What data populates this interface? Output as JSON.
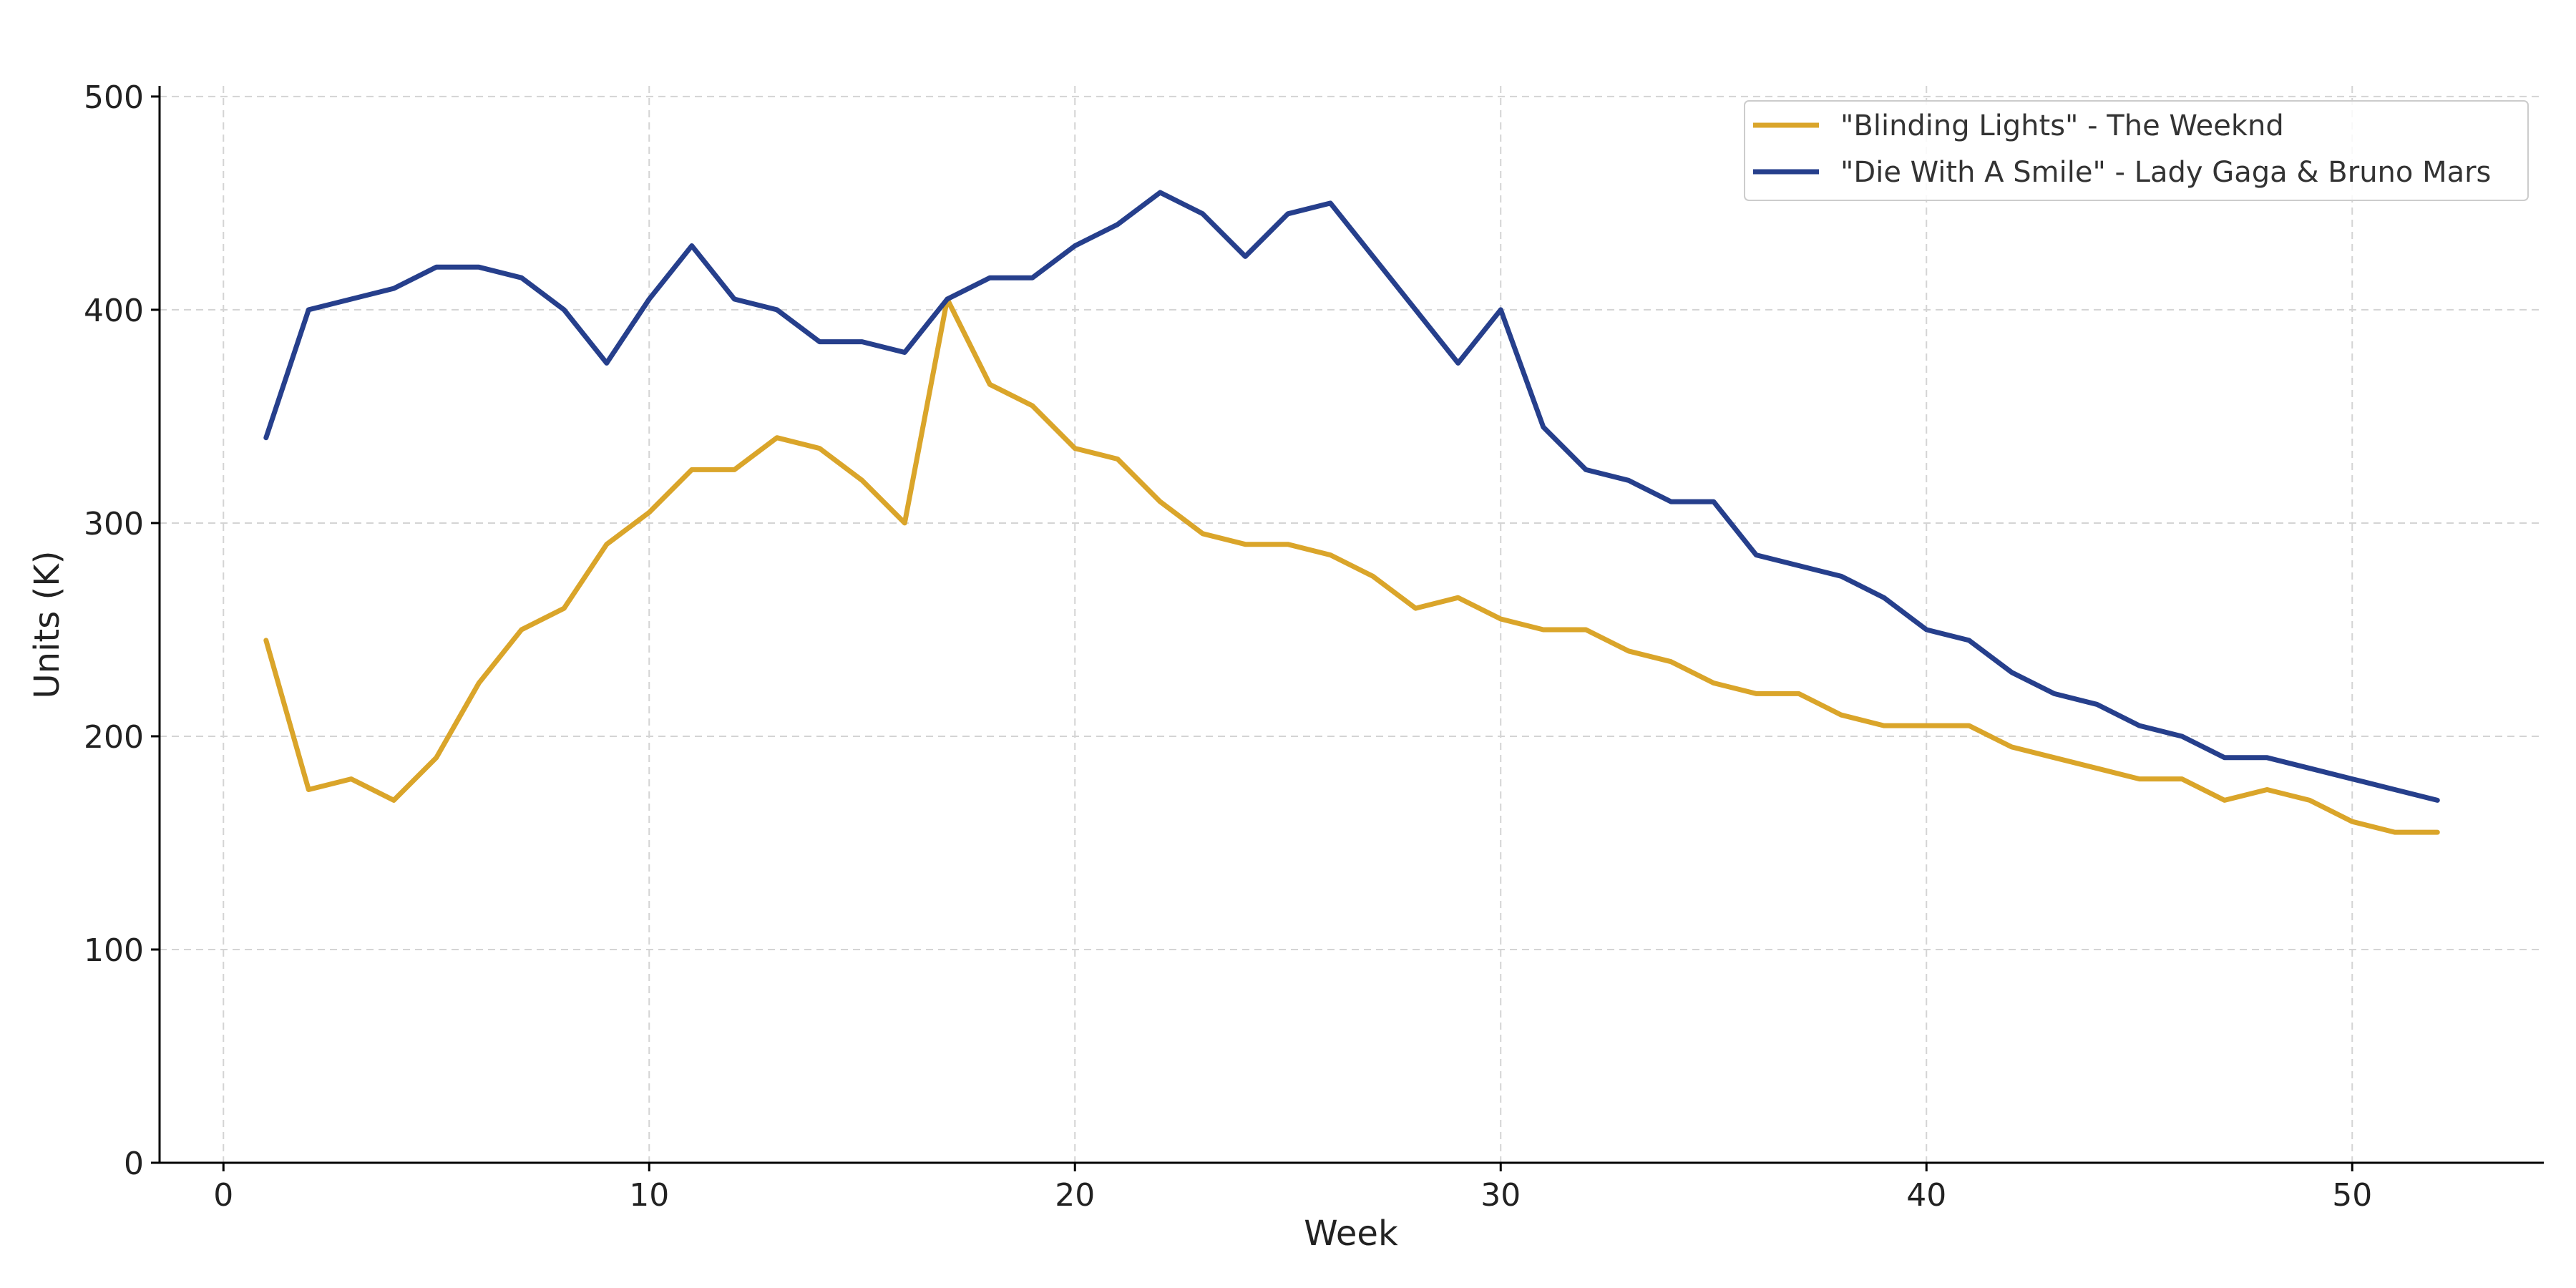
{
  "chart_data": {
    "type": "line",
    "title": "",
    "xlabel": "Week",
    "ylabel": "Units (K)",
    "xlim": [
      -1.5,
      54.5
    ],
    "ylim": [
      0,
      505
    ],
    "xticks": [
      0,
      10,
      20,
      30,
      40,
      50
    ],
    "yticks": [
      0,
      100,
      200,
      300,
      400,
      500
    ],
    "grid": true,
    "legend_position": "top-right",
    "x": [
      1,
      2,
      3,
      4,
      5,
      6,
      7,
      8,
      9,
      10,
      11,
      12,
      13,
      14,
      15,
      16,
      17,
      18,
      19,
      20,
      21,
      22,
      23,
      24,
      25,
      26,
      27,
      28,
      29,
      30,
      31,
      32,
      33,
      34,
      35,
      36,
      37,
      38,
      39,
      40,
      41,
      42,
      43,
      44,
      45,
      46,
      47,
      48,
      49,
      50,
      51,
      52
    ],
    "series": [
      {
        "name": "\"Blinding Lights\" - The Weeknd",
        "color": "#DAA52A",
        "values": [
          245,
          175,
          180,
          170,
          190,
          225,
          250,
          260,
          290,
          305,
          325,
          325,
          340,
          335,
          320,
          300,
          405,
          365,
          355,
          335,
          330,
          310,
          295,
          290,
          290,
          285,
          275,
          260,
          265,
          255,
          250,
          250,
          240,
          235,
          225,
          220,
          220,
          210,
          205,
          205,
          205,
          195,
          190,
          185,
          180,
          180,
          170,
          175,
          170,
          160,
          155,
          155
        ]
      },
      {
        "name": "\"Die With A Smile\" - Lady Gaga & Bruno Mars",
        "color": "#263F8C",
        "values": [
          340,
          400,
          405,
          410,
          420,
          420,
          415,
          400,
          375,
          405,
          430,
          405,
          400,
          385,
          385,
          380,
          405,
          415,
          415,
          430,
          440,
          455,
          445,
          425,
          445,
          450,
          425,
          400,
          375,
          400,
          345,
          325,
          320,
          310,
          310,
          285,
          280,
          275,
          265,
          250,
          245,
          230,
          220,
          215,
          205,
          200,
          190,
          190,
          185,
          180,
          175,
          170
        ]
      }
    ]
  }
}
